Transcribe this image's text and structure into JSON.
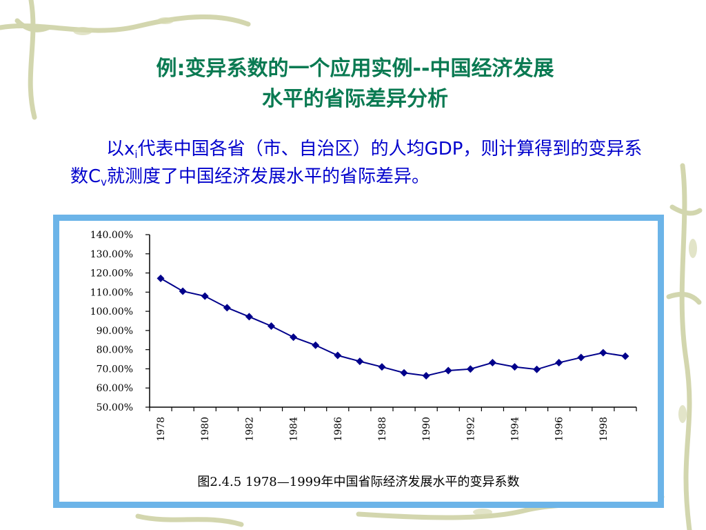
{
  "slide": {
    "title_line1": "例:变异系数的一个应用实例--中国经济发展",
    "title_line2": "水平的省际差异分析",
    "body_part1": "以x",
    "body_sub1": "i",
    "body_part2": "代表中国各省（市、自治区）的人均GDP，则计算得到的变异系数C",
    "body_sub2": "v",
    "body_part3": "就测度了中国经济发展水平的省际差异。",
    "caption": "图2.4.5 1978—1999年中国省际经济发展水平的变异系数"
  },
  "colors": {
    "title": "#0a7a52",
    "body_text": "#0000cc",
    "frame": "#6cb4e8",
    "series": "#00008b"
  },
  "chart_data": {
    "type": "line",
    "title": "",
    "xlabel": "",
    "ylabel": "",
    "x": [
      1978,
      1979,
      1980,
      1981,
      1982,
      1983,
      1984,
      1985,
      1986,
      1987,
      1988,
      1989,
      1990,
      1991,
      1992,
      1993,
      1994,
      1995,
      1996,
      1997,
      1998,
      1999
    ],
    "x_tick_labels": [
      "1978",
      "1980",
      "1982",
      "1984",
      "1986",
      "1988",
      "1990",
      "1992",
      "1994",
      "1996",
      "1998"
    ],
    "y_tick_labels": [
      "140.00%",
      "130.00%",
      "120.00%",
      "110.00%",
      "100.00%",
      "90.00%",
      "80.00%",
      "70.00%",
      "60.00%",
      "50.00%"
    ],
    "ylim": [
      50,
      140
    ],
    "series": [
      {
        "values": [
          117.2,
          110.5,
          107.9,
          101.9,
          97.2,
          92.3,
          86.5,
          82.3,
          77.0,
          73.9,
          71.0,
          67.9,
          66.4,
          69.1,
          69.9,
          73.2,
          71.0,
          69.7,
          73.2,
          75.9,
          78.4,
          76.6
        ],
        "marker": "diamond"
      }
    ],
    "grid": false,
    "legend": "none"
  }
}
